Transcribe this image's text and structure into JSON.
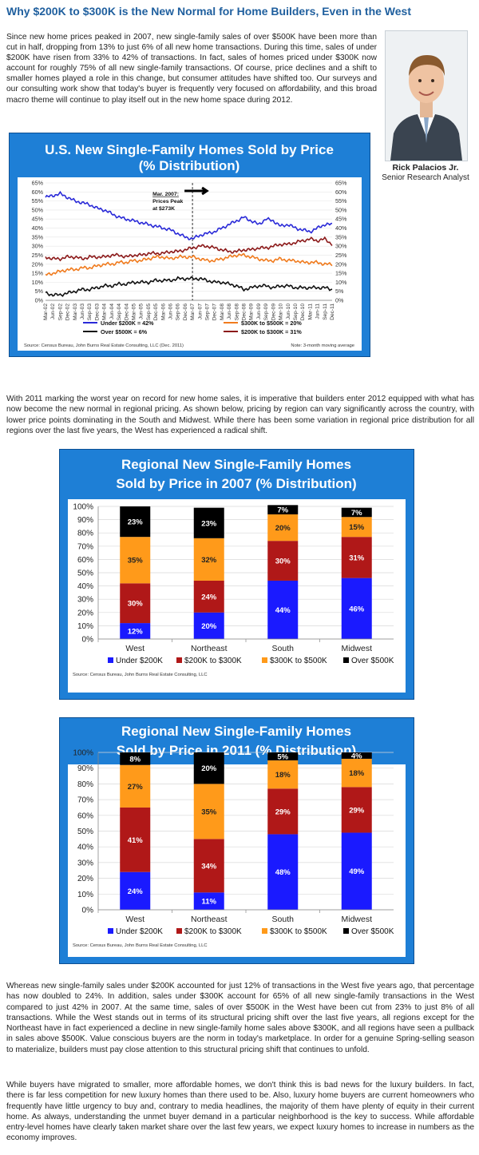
{
  "article": {
    "headline": "Why $200K to $300K is the New Normal for Home Builders, Even in the West",
    "para1": "Since new home prices peaked in 2007, new single-family sales of over $500K have been more than cut in half, dropping from 13% to just 6% of all new home transactions. During this time, sales of under $200K have risen from 33% to 42% of transactions. In fact, sales of homes priced under $300K now account for roughly 75% of all new single-family transactions. Of course, price declines and a shift to smaller homes played a role in this change, but consumer attitudes have shifted too. Our surveys and our consulting work show that today's buyer is frequently very focused on affordability, and this broad macro theme will continue to play itself out in the new home space during 2012.",
    "para2": "With 2011 marking the worst year on record for new home sales, it is imperative that builders enter 2012 equipped with what has now become the new normal in regional pricing. As shown below, pricing by region can vary significantly across the country, with lower price points dominating in the South and Midwest. While there has been some variation in regional price distribution for all regions over the last five years, the West has experienced a radical shift.",
    "para3": "Whereas new single-family sales under $200K accounted for just 12% of transactions in the West five years ago, that percentage has now doubled to 24%. In addition, sales under $300K account for 65% of all new single-family transactions in the West compared to just 42% in 2007. At the same time, sales of over $500K in the West have been cut from 23% to just 8% of all transactions. While the West stands out in terms of its structural pricing shift over the last five years, all regions except for the Northeast have in fact experienced a decline in new single-family home sales above $300K, and all regions have seen a pullback in sales above $500K. Value conscious buyers are the norm in today's marketplace. In order for a genuine Spring-selling season to materialize, builders must pay close attention to this structural pricing shift that continues to unfold.",
    "para4": "While buyers have migrated to smaller, more affordable homes, we don't think this is bad news for the luxury builders. In fact, there is far less competition for new luxury homes than there used to be. Also, luxury home buyers are current homeowners who frequently have little urgency to buy and, contrary to media headlines, the majority of them have plenty of equity in their current home. As always, understanding the unmet buyer demand in a particular neighborhood is the key to success. While affordable entry-level homes have clearly taken market share over the last few years, we expect luxury homes to increase in numbers as the economy improves."
  },
  "author": {
    "name": "Rick Palacios Jr.",
    "title": "Senior Research Analyst"
  },
  "colors": {
    "panel_blue": "#1e7fd6",
    "under200": "#1a1aff",
    "s200_300": "#b01818",
    "s300_500": "#ff9a1a",
    "over500": "#000000",
    "line_under200": "#2a2ad8",
    "line_300_500": "#f07b1e",
    "line_over500": "#111111",
    "line_200_300": "#8c1a1a"
  },
  "chart_data": [
    {
      "type": "line",
      "title": "U.S. New Single-Family Homes Sold by Price",
      "subtitle": "(% Distribution)",
      "annotation": [
        "Mar. 2007:",
        "Prices Peak",
        "at $273K"
      ],
      "source": "Source: Census Bureau, John Burns Real Estate Consulting, LLC (Dec. 2011)",
      "note": "Note: 3-month moving average",
      "ylim": [
        0,
        65
      ],
      "yticks": [
        "0%",
        "5%",
        "10%",
        "15%",
        "20%",
        "25%",
        "30%",
        "35%",
        "40%",
        "45%",
        "50%",
        "55%",
        "60%",
        "65%"
      ],
      "xticks": [
        "Mar-02",
        "Jun-02",
        "Sep-02",
        "Dec-02",
        "Mar-03",
        "Jun-03",
        "Sep-03",
        "Dec-03",
        "Mar-04",
        "Jun-04",
        "Sep-04",
        "Dec-04",
        "Mar-05",
        "Jun-05",
        "Sep-05",
        "Dec-05",
        "Mar-06",
        "Jun-06",
        "Sep-06",
        "Dec-06",
        "Mar-07",
        "Jun-07",
        "Sep-07",
        "Dec-07",
        "Mar-08",
        "Jun-08",
        "Sep-08",
        "Dec-08",
        "Mar-09",
        "Jun-09",
        "Sep-09",
        "Dec-09",
        "Mar-10",
        "Jun-10",
        "Sep-10",
        "Dec-10",
        "Mar-11",
        "Jun-11",
        "Sep-11",
        "Dec-11"
      ],
      "peak_index": 20,
      "series": [
        {
          "name": "Under $200K = 42%",
          "color": "#2a2ad8",
          "values": [
            57,
            58,
            59,
            57,
            55,
            54,
            53,
            51,
            50,
            48,
            46,
            45,
            44,
            43,
            42,
            41,
            40,
            39,
            37,
            35,
            34,
            36,
            37,
            38,
            40,
            42,
            44,
            46,
            44,
            42,
            45,
            44,
            41,
            42,
            40,
            39,
            38,
            40,
            42,
            42
          ]
        },
        {
          "name": "$300K to $500K = 20%",
          "color": "#f07b1e",
          "values": [
            14,
            15,
            16,
            17,
            17,
            18,
            18,
            19,
            20,
            20,
            21,
            21,
            22,
            22,
            23,
            24,
            24,
            23,
            24,
            24,
            24,
            23,
            22,
            22,
            23,
            24,
            25,
            25,
            24,
            23,
            22,
            22,
            23,
            22,
            22,
            21,
            21,
            21,
            20,
            20
          ]
        },
        {
          "name": "Over $500K = 6%",
          "color": "#111111",
          "values": [
            4,
            3,
            3,
            4,
            5,
            6,
            6,
            7,
            8,
            8,
            9,
            9,
            10,
            10,
            10,
            11,
            11,
            11,
            12,
            12,
            12,
            12,
            11,
            10,
            10,
            9,
            8,
            6,
            7,
            8,
            8,
            7,
            8,
            8,
            7,
            7,
            7,
            7,
            7,
            6
          ]
        },
        {
          "name": "$200K to $300K = 31%",
          "color": "#8c1a1a",
          "values": [
            24,
            23,
            23,
            24,
            24,
            23,
            24,
            24,
            24,
            25,
            25,
            24,
            25,
            25,
            26,
            26,
            26,
            27,
            27,
            28,
            29,
            30,
            30,
            29,
            28,
            27,
            27,
            28,
            28,
            29,
            29,
            30,
            31,
            31,
            32,
            33,
            34,
            33,
            34,
            31
          ]
        }
      ]
    },
    {
      "type": "bar",
      "title": "Regional New Single-Family Homes",
      "subtitle": "Sold by Price in 2007  (% Distribution)",
      "source": "Source: Census Bureau, John Burns Real Estate Consulting, LLC",
      "categories": [
        "West",
        "Northeast",
        "South",
        "Midwest"
      ],
      "yticks": [
        "0%",
        "10%",
        "20%",
        "30%",
        "40%",
        "50%",
        "60%",
        "70%",
        "80%",
        "90%",
        "100%"
      ],
      "ylim": [
        0,
        100
      ],
      "series": [
        {
          "name": "Under $200K",
          "color": "#1a1aff",
          "values": [
            12,
            20,
            44,
            46
          ]
        },
        {
          "name": "$200K to $300K",
          "color": "#b01818",
          "values": [
            30,
            24,
            30,
            31
          ]
        },
        {
          "name": "$300K to $500K",
          "color": "#ff9a1a",
          "values": [
            35,
            32,
            20,
            15
          ]
        },
        {
          "name": "Over $500K",
          "color": "#000000",
          "values": [
            23,
            23,
            7,
            7
          ]
        }
      ],
      "labels": [
        [
          "12%",
          "30%",
          "35%",
          "23%"
        ],
        [
          "20%",
          "24%",
          "32%",
          "23%"
        ],
        [
          "44%",
          "30%",
          "20%",
          "7%"
        ],
        [
          "46%",
          "31%",
          "15%",
          "7%"
        ]
      ]
    },
    {
      "type": "bar",
      "title": "Regional New Single-Family Homes",
      "subtitle": "Sold by Price in 2011  (% Distribution)",
      "source": "Source: Census Bureau, John Burns Real Estate Consulting, LLC",
      "categories": [
        "West",
        "Northeast",
        "South",
        "Midwest"
      ],
      "yticks": [
        "0%",
        "10%",
        "20%",
        "30%",
        "40%",
        "50%",
        "60%",
        "70%",
        "80%",
        "90%",
        "100%"
      ],
      "ylim": [
        0,
        100
      ],
      "series": [
        {
          "name": "Under $200K",
          "color": "#1a1aff",
          "values": [
            24,
            11,
            48,
            49
          ]
        },
        {
          "name": "$200K to $300K",
          "color": "#b01818",
          "values": [
            41,
            34,
            29,
            29
          ]
        },
        {
          "name": "$300K to $500K",
          "color": "#ff9a1a",
          "values": [
            27,
            35,
            18,
            18
          ]
        },
        {
          "name": "Over $500K",
          "color": "#000000",
          "values": [
            8,
            20,
            5,
            4
          ]
        }
      ],
      "labels": [
        [
          "24%",
          "41%",
          "27%",
          "8%"
        ],
        [
          "11%",
          "34%",
          "35%",
          "20%"
        ],
        [
          "48%",
          "29%",
          "18%",
          "5%"
        ],
        [
          "49%",
          "29%",
          "18%",
          "4%"
        ]
      ]
    }
  ]
}
